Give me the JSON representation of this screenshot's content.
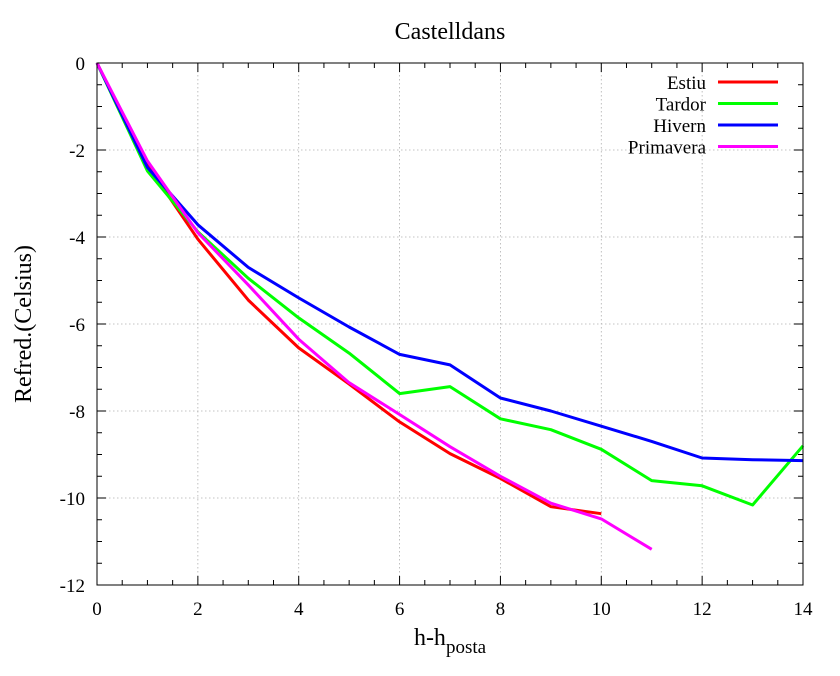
{
  "chart_data": {
    "type": "line",
    "title": "Castelldans",
    "xlabel": {
      "main": "h-h",
      "sub": "posta"
    },
    "ylabel": "Refred.(Celsius)",
    "xlim": [
      0,
      14
    ],
    "ylim": [
      -12,
      0
    ],
    "xticks": [
      0,
      2,
      4,
      6,
      8,
      10,
      12,
      14
    ],
    "xtick_labels": [
      "0",
      "2",
      "4",
      "6",
      "8",
      "10",
      "12",
      "14"
    ],
    "yticks": [
      0,
      -2,
      -4,
      -6,
      -8,
      -10,
      -12
    ],
    "ytick_labels": [
      "0",
      "-2",
      "-4",
      "-6",
      "-8",
      "-10",
      "-12"
    ],
    "grid": true,
    "legend_position": "top-right",
    "series": [
      {
        "name": "Estiu",
        "color": "#ff0000",
        "x": [
          0,
          1,
          2,
          3,
          4,
          5,
          6,
          7,
          8,
          9,
          10
        ],
        "y": [
          0,
          -2.35,
          -4.05,
          -5.45,
          -6.55,
          -7.38,
          -8.25,
          -8.98,
          -9.55,
          -10.2,
          -10.36
        ]
      },
      {
        "name": "Tardor",
        "color": "#00ff00",
        "x": [
          0,
          1,
          2,
          3,
          4,
          5,
          6,
          7,
          8,
          9,
          10,
          11,
          12,
          13,
          14
        ],
        "y": [
          0,
          -2.48,
          -3.88,
          -4.95,
          -5.86,
          -6.67,
          -7.6,
          -7.44,
          -8.18,
          -8.43,
          -8.88,
          -9.6,
          -9.72,
          -10.16,
          -8.8
        ]
      },
      {
        "name": "Hivern",
        "color": "#0000ff",
        "x": [
          0,
          1,
          2,
          3,
          4,
          5,
          6,
          7,
          8,
          9,
          10,
          11,
          12,
          13,
          14
        ],
        "y": [
          0,
          -2.4,
          -3.72,
          -4.7,
          -5.4,
          -6.07,
          -6.7,
          -6.94,
          -7.7,
          -8.0,
          -8.35,
          -8.7,
          -9.08,
          -9.12,
          -9.14
        ]
      },
      {
        "name": "Primavera",
        "color": "#ff00ff",
        "x": [
          0,
          1,
          2,
          3,
          4,
          5,
          6,
          7,
          8,
          9,
          10,
          11
        ],
        "y": [
          0,
          -2.25,
          -3.9,
          -5.1,
          -6.35,
          -7.35,
          -8.08,
          -8.82,
          -9.5,
          -10.12,
          -10.48,
          -11.18
        ]
      }
    ]
  }
}
